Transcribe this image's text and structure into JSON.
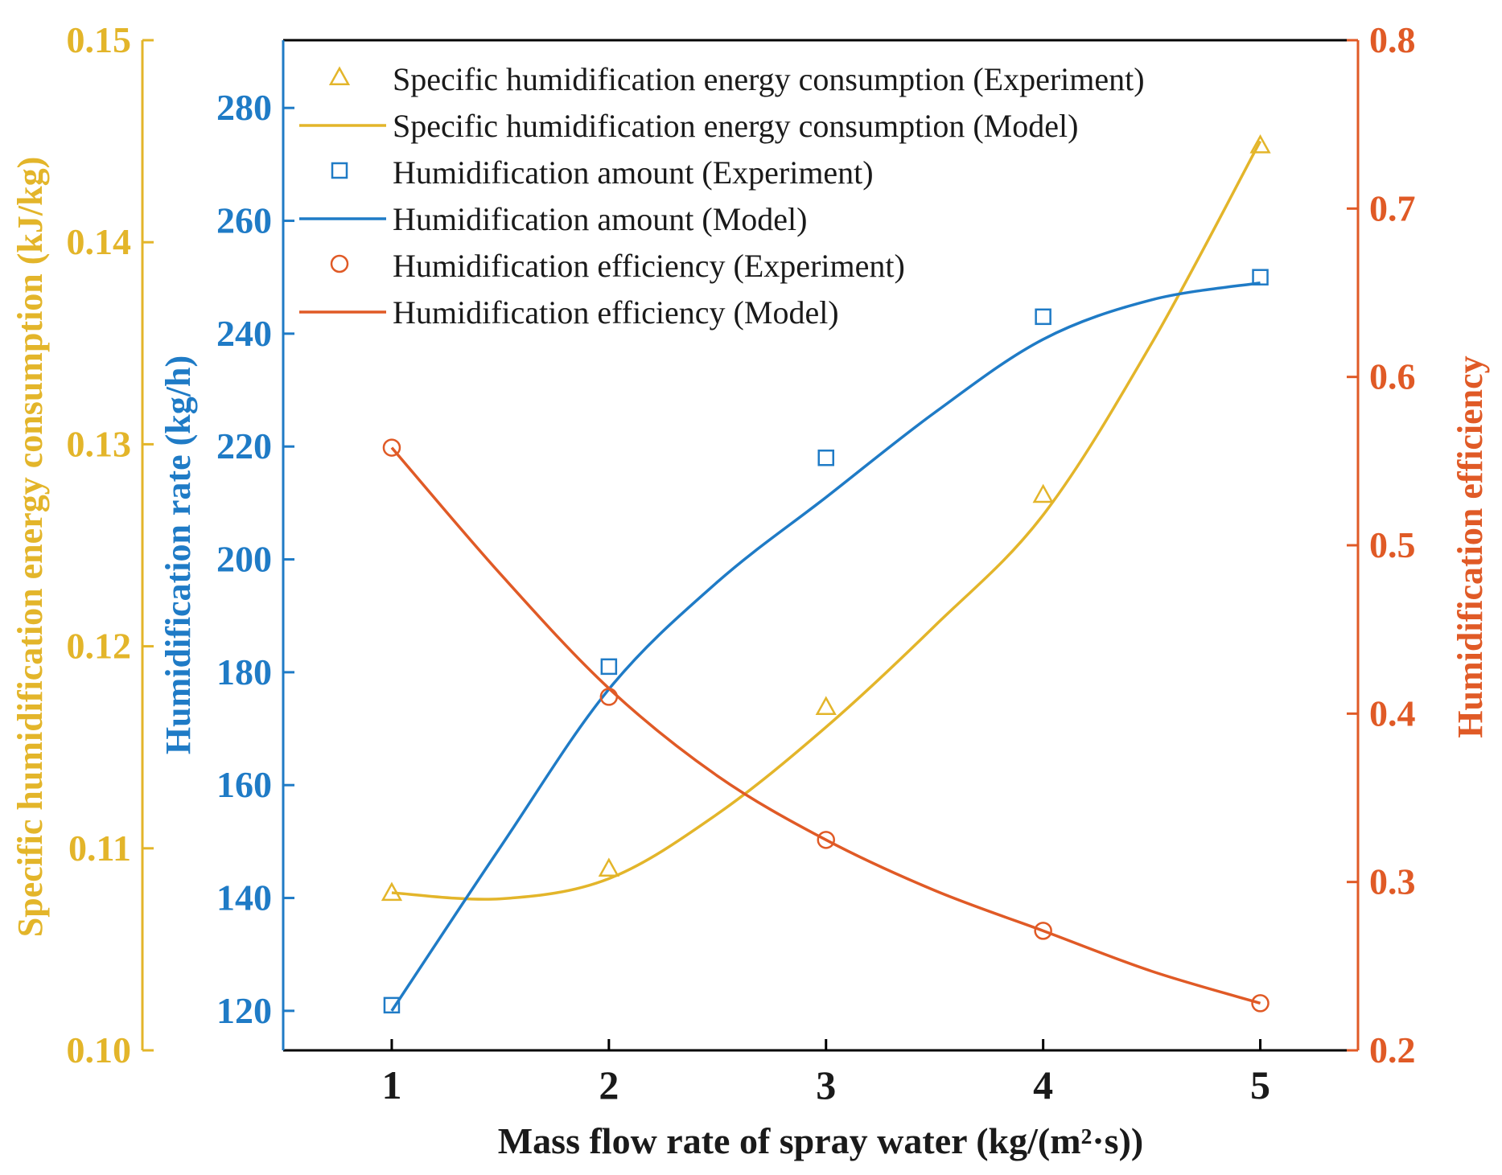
{
  "chart_data": {
    "type": "line",
    "title": "",
    "xlabel": "Mass flow rate of spray water (kg/(m²·s))",
    "x_ticks": [
      "1",
      "2",
      "3",
      "4",
      "5"
    ],
    "xlim": [
      0.5,
      5.45
    ],
    "axes": {
      "left_outer": {
        "label": "Specific humidification energy consumption (kJ/kg)",
        "range": [
          0.1,
          0.15
        ],
        "ticks": [
          "0.10",
          "0.11",
          "0.12",
          "0.13",
          "0.14",
          "0.15"
        ],
        "color": "#e3b52a"
      },
      "left_inner": {
        "label": "Humidification rate (kg/h)",
        "range": [
          113,
          292
        ],
        "ticks": [
          "120",
          "140",
          "160",
          "180",
          "200",
          "220",
          "240",
          "260",
          "280"
        ],
        "color": "#1f7bc6"
      },
      "right": {
        "label": "Humidification efficiency",
        "range": [
          0.2,
          0.8
        ],
        "ticks": [
          "0.2",
          "0.3",
          "0.4",
          "0.5",
          "0.6",
          "0.7",
          "0.8"
        ],
        "color": "#e05a26"
      }
    },
    "series": [
      {
        "name": "Specific humidification energy consumption (Experiment)",
        "kind": "marker",
        "marker": "triangle",
        "axis": "left_outer",
        "color": "#e3b52a",
        "x": [
          1,
          2,
          3,
          4,
          5
        ],
        "values": [
          0.1078,
          0.109,
          0.117,
          0.1275,
          0.1448
        ]
      },
      {
        "name": "Specific humidification energy consumption (Model)",
        "kind": "line",
        "axis": "left_outer",
        "color": "#e3b52a",
        "x": [
          1,
          1.5,
          2,
          2.5,
          3,
          3.5,
          4,
          4.5,
          5
        ],
        "values": [
          0.1078,
          0.1075,
          0.1085,
          0.1117,
          0.116,
          0.121,
          0.1265,
          0.135,
          0.145
        ]
      },
      {
        "name": "Humidification amount (Experiment)",
        "kind": "marker",
        "marker": "square",
        "axis": "left_inner",
        "color": "#1f7bc6",
        "x": [
          1,
          2,
          3,
          4,
          5
        ],
        "values": [
          121,
          181,
          218,
          243,
          250
        ]
      },
      {
        "name": "Humidification amount (Model)",
        "kind": "line",
        "axis": "left_inner",
        "color": "#1f7bc6",
        "x": [
          1,
          1.5,
          2,
          2.5,
          3,
          3.5,
          4,
          4.5,
          5
        ],
        "values": [
          120,
          149,
          177,
          196,
          211,
          226,
          239,
          246,
          249
        ]
      },
      {
        "name": "Humidification efficiency (Experiment)",
        "kind": "marker",
        "marker": "circle",
        "axis": "right",
        "color": "#e05a26",
        "x": [
          1,
          2,
          3,
          4,
          5
        ],
        "values": [
          0.558,
          0.41,
          0.325,
          0.271,
          0.228
        ]
      },
      {
        "name": "Humidification efficiency (Model)",
        "kind": "line",
        "axis": "right",
        "color": "#e05a26",
        "x": [
          1,
          1.5,
          2,
          2.5,
          3,
          3.5,
          4,
          4.5,
          5
        ],
        "values": [
          0.558,
          0.483,
          0.415,
          0.363,
          0.325,
          0.295,
          0.271,
          0.247,
          0.228
        ]
      }
    ],
    "legend_position": "top-left"
  }
}
